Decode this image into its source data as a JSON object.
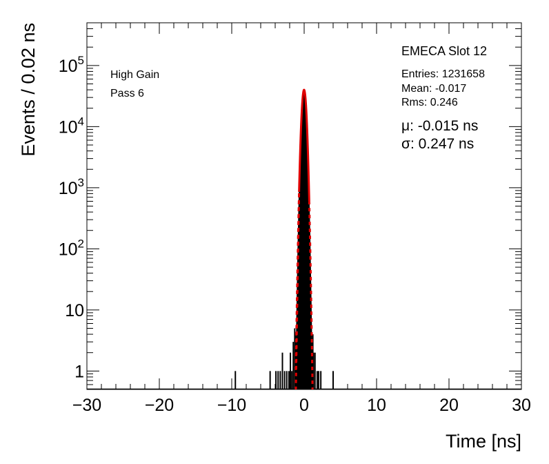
{
  "chart_data": {
    "type": "histogram",
    "title": "EMECA Slot 12",
    "xlabel": "Time [ns]",
    "ylabel": "Events / 0.02 ns",
    "xlim": [
      -30,
      30
    ],
    "ylim": [
      0.5,
      500000
    ],
    "y_scale": "log",
    "grid": false,
    "legend": "none",
    "x_ticks": [
      "−30",
      "−20",
      "−10",
      "0",
      "10",
      "20",
      "30"
    ],
    "x_tick_values": [
      -30,
      -20,
      -10,
      0,
      10,
      20,
      30
    ],
    "y_ticks": [
      {
        "value": 1,
        "label": "1"
      },
      {
        "value": 10,
        "label": "10"
      },
      {
        "value": 100,
        "base": "10",
        "exp": "2"
      },
      {
        "value": 1000,
        "base": "10",
        "exp": "3"
      },
      {
        "value": 10000,
        "base": "10",
        "exp": "4"
      },
      {
        "value": 100000,
        "base": "10",
        "exp": "5"
      }
    ],
    "stats": {
      "entries_text": "Entries: 1231658",
      "mean_text": "Mean: -0.017",
      "rms_text": "Rms: 0.246"
    },
    "fit": {
      "mu_text": "μ: -0.015 ns",
      "sigma_text": "σ: 0.247 ns",
      "mu": -0.015,
      "sigma": 0.247,
      "amplitude": 40000,
      "color": "#e00000",
      "solid_range": [
        -0.7,
        0.7
      ],
      "dashed_range": [
        -1.15,
        1.15
      ]
    },
    "labels": {
      "gain": "High Gain",
      "pass": "Pass 6"
    },
    "outlier_bins": [
      {
        "x": -9.5,
        "y": 1
      },
      {
        "x": -4.7,
        "y": 1
      },
      {
        "x": -3.9,
        "y": 1
      },
      {
        "x": -3.6,
        "y": 1
      },
      {
        "x": -3.3,
        "y": 1
      },
      {
        "x": -3.0,
        "y": 2
      },
      {
        "x": -2.7,
        "y": 1
      },
      {
        "x": -2.4,
        "y": 1
      },
      {
        "x": -2.1,
        "y": 1
      },
      {
        "x": -1.9,
        "y": 2
      },
      {
        "x": -1.7,
        "y": 1
      },
      {
        "x": -1.5,
        "y": 3
      },
      {
        "x": -1.3,
        "y": 5
      },
      {
        "x": -1.2,
        "y": 4
      },
      {
        "x": 1.2,
        "y": 4
      },
      {
        "x": 1.3,
        "y": 2
      },
      {
        "x": 1.5,
        "y": 2
      },
      {
        "x": 1.8,
        "y": 1
      },
      {
        "x": 2.0,
        "y": 1
      },
      {
        "x": 2.3,
        "y": 1
      },
      {
        "x": 4.0,
        "y": 1
      }
    ],
    "colors": {
      "histogram": "#000000",
      "fit": "#e00000"
    }
  }
}
